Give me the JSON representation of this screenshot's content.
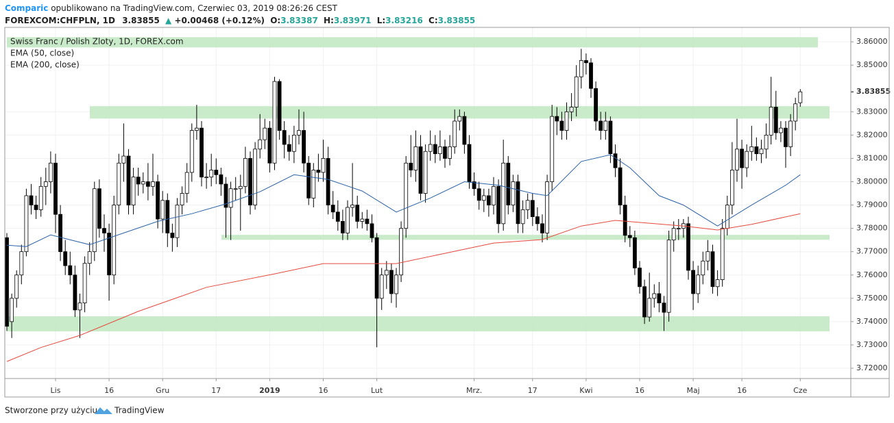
{
  "header": {
    "author": "Comparic",
    "published": "opublikowano na TradingView.com, Czerwiec 03, 2019 08:26:26 CEST",
    "symbol": "FOREXCOM:CHFPLN, 1D",
    "last": "3.83855",
    "arrow": "▲",
    "change": "+0.00468 (+0.12%)",
    "ohlc": [
      {
        "label": "O:",
        "value": "3.83387"
      },
      {
        "label": "H:",
        "value": "3.83971"
      },
      {
        "label": "L:",
        "value": "3.83216"
      },
      {
        "label": "C:",
        "value": "3.83855"
      }
    ]
  },
  "footer": {
    "text": "Stworzone przy użyciu",
    "brand": "TradingView"
  },
  "chart_data": {
    "type": "candlestick",
    "title": "Swiss Franc / Polish Zloty, 1D, FOREX.com",
    "up_color": "#ffffff",
    "down_color": "#000000",
    "zone_color": "#bfe8bf",
    "grid": true,
    "xlim": [
      0,
      164
    ],
    "ylim": [
      3.7156,
      3.8662
    ],
    "xticks": [
      {
        "value": 10,
        "label": "Lis"
      },
      {
        "value": 21,
        "label": "16"
      },
      {
        "value": 32,
        "label": "Gru"
      },
      {
        "value": 43,
        "label": "17"
      },
      {
        "value": 54,
        "label": "2019"
      },
      {
        "value": 65,
        "label": "16"
      },
      {
        "value": 76,
        "label": "Lut"
      },
      {
        "value": 96,
        "label": "Mrz."
      },
      {
        "value": 108,
        "label": "17"
      },
      {
        "value": 119,
        "label": "Kwi"
      },
      {
        "value": 130,
        "label": "16"
      },
      {
        "value": 141,
        "label": "Maj"
      },
      {
        "value": 151,
        "label": "16"
      },
      {
        "value": 163,
        "label": "Cze"
      }
    ],
    "yticks": [
      {
        "value": 3.72,
        "label": "3.72000"
      },
      {
        "value": 3.73,
        "label": "3.73000"
      },
      {
        "value": 3.74,
        "label": "3.74000"
      },
      {
        "value": 3.75,
        "label": "3.75000"
      },
      {
        "value": 3.76,
        "label": "3.76000"
      },
      {
        "value": 3.77,
        "label": "3.77000"
      },
      {
        "value": 3.78,
        "label": "3.78000"
      },
      {
        "value": 3.79,
        "label": "3.79000"
      },
      {
        "value": 3.8,
        "label": "3.80000"
      },
      {
        "value": 3.81,
        "label": "3.81000"
      },
      {
        "value": 3.82,
        "label": "3.82000"
      },
      {
        "value": 3.83,
        "label": "3.83000"
      },
      {
        "value": 3.85,
        "label": "3.85000"
      },
      {
        "value": 3.86,
        "label": "3.86000"
      }
    ],
    "last_price": {
      "value": 3.83855,
      "label": "3.83855"
    },
    "zones": [
      [
        3.8576,
        3.862
      ],
      [
        3.8271,
        3.8324
      ],
      [
        3.7751,
        3.7772
      ],
      [
        3.7358,
        3.7423
      ]
    ],
    "candles": [
      [
        3.776,
        3.778,
        3.736,
        3.738
      ],
      [
        3.74,
        3.752,
        3.733,
        3.75
      ],
      [
        3.75,
        3.762,
        3.746,
        3.76
      ],
      [
        3.76,
        3.773,
        3.756,
        3.77
      ],
      [
        3.77,
        3.797,
        3.768,
        3.794
      ],
      [
        3.794,
        3.799,
        3.786,
        3.79
      ],
      [
        3.79,
        3.794,
        3.784,
        3.788
      ],
      [
        3.788,
        3.802,
        3.785,
        3.798
      ],
      [
        3.798,
        3.806,
        3.79,
        3.8
      ],
      [
        3.8,
        3.813,
        3.795,
        3.808
      ],
      [
        3.808,
        3.812,
        3.778,
        3.786
      ],
      [
        3.786,
        3.79,
        3.766,
        3.77
      ],
      [
        3.77,
        3.775,
        3.76,
        3.764
      ],
      [
        3.764,
        3.77,
        3.756,
        3.76
      ],
      [
        3.76,
        3.764,
        3.742,
        3.745
      ],
      [
        3.745,
        3.752,
        3.733,
        3.748
      ],
      [
        3.748,
        3.768,
        3.744,
        3.765
      ],
      [
        3.765,
        3.774,
        3.76,
        3.77
      ],
      [
        3.77,
        3.8,
        3.766,
        3.797
      ],
      [
        3.797,
        3.801,
        3.776,
        3.78
      ],
      [
        3.78,
        3.786,
        3.77,
        3.778
      ],
      [
        3.778,
        3.782,
        3.749,
        3.76
      ],
      [
        3.76,
        3.794,
        3.756,
        3.79
      ],
      [
        3.79,
        3.812,
        3.786,
        3.808
      ],
      [
        3.808,
        3.825,
        3.8,
        3.811
      ],
      [
        3.811,
        3.814,
        3.786,
        3.79
      ],
      [
        3.79,
        3.806,
        3.786,
        3.802
      ],
      [
        3.802,
        3.806,
        3.794,
        3.799
      ],
      [
        3.799,
        3.804,
        3.795,
        3.8
      ],
      [
        3.8,
        3.808,
        3.792,
        3.798
      ],
      [
        3.798,
        3.812,
        3.794,
        3.8
      ],
      [
        3.8,
        3.803,
        3.78,
        3.784
      ],
      [
        3.784,
        3.796,
        3.778,
        3.792
      ],
      [
        3.792,
        3.795,
        3.772,
        3.778
      ],
      [
        3.778,
        3.782,
        3.77,
        3.776
      ],
      [
        3.776,
        3.793,
        3.772,
        3.79
      ],
      [
        3.79,
        3.798,
        3.786,
        3.795
      ],
      [
        3.795,
        3.808,
        3.791,
        3.804
      ],
      [
        3.804,
        3.825,
        3.8,
        3.822
      ],
      [
        3.822,
        3.833,
        3.818,
        3.823
      ],
      [
        3.823,
        3.826,
        3.798,
        3.802
      ],
      [
        3.802,
        3.808,
        3.797,
        3.802
      ],
      [
        3.802,
        3.812,
        3.798,
        3.805
      ],
      [
        3.805,
        3.81,
        3.799,
        3.803
      ],
      [
        3.803,
        3.806,
        3.794,
        3.799
      ],
      [
        3.799,
        3.802,
        3.776,
        3.789
      ],
      [
        3.789,
        3.8,
        3.775,
        3.797
      ],
      [
        3.797,
        3.802,
        3.792,
        3.797
      ],
      [
        3.797,
        3.803,
        3.779,
        3.798
      ],
      [
        3.798,
        3.815,
        3.795,
        3.81
      ],
      [
        3.81,
        3.813,
        3.786,
        3.79
      ],
      [
        3.79,
        3.817,
        3.788,
        3.814
      ],
      [
        3.814,
        3.829,
        3.81,
        3.818
      ],
      [
        3.818,
        3.827,
        3.814,
        3.823
      ],
      [
        3.823,
        3.826,
        3.804,
        3.808
      ],
      [
        3.808,
        3.845,
        3.805,
        3.843
      ],
      [
        3.843,
        3.844,
        3.818,
        3.822
      ],
      [
        3.822,
        3.826,
        3.81,
        3.816
      ],
      [
        3.816,
        3.82,
        3.809,
        3.813
      ],
      [
        3.813,
        3.824,
        3.808,
        3.82
      ],
      [
        3.82,
        3.831,
        3.816,
        3.822
      ],
      [
        3.822,
        3.83,
        3.804,
        3.808
      ],
      [
        3.808,
        3.811,
        3.79,
        3.793
      ],
      [
        3.793,
        3.808,
        3.789,
        3.805
      ],
      [
        3.805,
        3.812,
        3.8,
        3.804
      ],
      [
        3.804,
        3.818,
        3.8,
        3.81
      ],
      [
        3.81,
        3.815,
        3.786,
        3.79
      ],
      [
        3.79,
        3.796,
        3.784,
        3.787
      ],
      [
        3.787,
        3.792,
        3.779,
        3.783
      ],
      [
        3.783,
        3.788,
        3.775,
        3.778
      ],
      [
        3.778,
        3.792,
        3.775,
        3.789
      ],
      [
        3.789,
        3.808,
        3.785,
        3.79
      ],
      [
        3.79,
        3.794,
        3.78,
        3.783
      ],
      [
        3.783,
        3.787,
        3.78,
        3.784
      ],
      [
        3.784,
        3.788,
        3.779,
        3.782
      ],
      [
        3.782,
        3.786,
        3.774,
        3.776
      ],
      [
        3.776,
        3.778,
        3.729,
        3.75
      ],
      [
        3.75,
        3.763,
        3.745,
        3.76
      ],
      [
        3.76,
        3.766,
        3.754,
        3.762
      ],
      [
        3.762,
        3.765,
        3.748,
        3.752
      ],
      [
        3.752,
        3.763,
        3.746,
        3.76
      ],
      [
        3.76,
        3.783,
        3.757,
        3.78
      ],
      [
        3.78,
        3.811,
        3.776,
        3.808
      ],
      [
        3.808,
        3.82,
        3.802,
        3.805
      ],
      [
        3.805,
        3.822,
        3.8,
        3.815
      ],
      [
        3.815,
        3.82,
        3.792,
        3.795
      ],
      [
        3.795,
        3.816,
        3.791,
        3.813
      ],
      [
        3.813,
        3.822,
        3.809,
        3.816
      ],
      [
        3.816,
        3.82,
        3.808,
        3.812
      ],
      [
        3.812,
        3.822,
        3.809,
        3.815
      ],
      [
        3.815,
        3.818,
        3.806,
        3.81
      ],
      [
        3.81,
        3.82,
        3.807,
        3.815
      ],
      [
        3.815,
        3.831,
        3.812,
        3.826
      ],
      [
        3.826,
        3.831,
        3.822,
        3.828
      ],
      [
        3.828,
        3.83,
        3.812,
        3.816
      ],
      [
        3.816,
        3.82,
        3.797,
        3.8
      ],
      [
        3.8,
        3.804,
        3.794,
        3.797
      ],
      [
        3.797,
        3.8,
        3.788,
        3.792
      ],
      [
        3.792,
        3.797,
        3.787,
        3.794
      ],
      [
        3.794,
        3.797,
        3.785,
        3.79
      ],
      [
        3.79,
        3.802,
        3.786,
        3.798
      ],
      [
        3.798,
        3.801,
        3.778,
        3.782
      ],
      [
        3.782,
        3.818,
        3.779,
        3.808
      ],
      [
        3.808,
        3.811,
        3.786,
        3.79
      ],
      [
        3.79,
        3.803,
        3.787,
        3.8
      ],
      [
        3.8,
        3.803,
        3.778,
        3.782
      ],
      [
        3.782,
        3.792,
        3.778,
        3.788
      ],
      [
        3.788,
        3.795,
        3.784,
        3.792
      ],
      [
        3.792,
        3.795,
        3.781,
        3.785
      ],
      [
        3.785,
        3.789,
        3.779,
        3.782
      ],
      [
        3.782,
        3.786,
        3.774,
        3.778
      ],
      [
        3.778,
        3.803,
        3.775,
        3.8
      ],
      [
        3.8,
        3.833,
        3.796,
        3.828
      ],
      [
        3.828,
        3.832,
        3.82,
        3.826
      ],
      [
        3.826,
        3.83,
        3.818,
        3.822
      ],
      [
        3.822,
        3.834,
        3.818,
        3.83
      ],
      [
        3.83,
        3.838,
        3.826,
        3.832
      ],
      [
        3.832,
        3.85,
        3.828,
        3.845
      ],
      [
        3.845,
        3.857,
        3.84,
        3.852
      ],
      [
        3.852,
        3.855,
        3.846,
        3.851
      ],
      [
        3.851,
        3.853,
        3.836,
        3.84
      ],
      [
        3.84,
        3.843,
        3.822,
        3.826
      ],
      [
        3.826,
        3.83,
        3.818,
        3.822
      ],
      [
        3.822,
        3.83,
        3.818,
        3.826
      ],
      [
        3.826,
        3.828,
        3.808,
        3.812
      ],
      [
        3.812,
        3.816,
        3.802,
        3.806
      ],
      [
        3.806,
        3.81,
        3.786,
        3.79
      ],
      [
        3.79,
        3.794,
        3.774,
        3.777
      ],
      [
        3.777,
        3.781,
        3.772,
        3.776
      ],
      [
        3.776,
        3.779,
        3.76,
        3.763
      ],
      [
        3.763,
        3.766,
        3.752,
        3.755
      ],
      [
        3.755,
        3.758,
        3.739,
        3.742
      ],
      [
        3.742,
        3.761,
        3.74,
        3.75
      ],
      [
        3.75,
        3.756,
        3.746,
        3.752
      ],
      [
        3.752,
        3.757,
        3.744,
        3.748
      ],
      [
        3.748,
        3.751,
        3.736,
        3.744
      ],
      [
        3.744,
        3.779,
        3.74,
        3.775
      ],
      [
        3.775,
        3.783,
        3.77,
        3.78
      ],
      [
        3.78,
        3.784,
        3.775,
        3.78
      ],
      [
        3.78,
        3.784,
        3.776,
        3.782
      ],
      [
        3.782,
        3.785,
        3.758,
        3.762
      ],
      [
        3.762,
        3.766,
        3.745,
        3.752
      ],
      [
        3.752,
        3.764,
        3.748,
        3.76
      ],
      [
        3.76,
        3.77,
        3.756,
        3.766
      ],
      [
        3.766,
        3.775,
        3.762,
        3.77
      ],
      [
        3.77,
        3.773,
        3.752,
        3.755
      ],
      [
        3.755,
        3.762,
        3.751,
        3.758
      ],
      [
        3.758,
        3.784,
        3.755,
        3.78
      ],
      [
        3.78,
        3.794,
        3.777,
        3.79
      ],
      [
        3.79,
        3.817,
        3.786,
        3.805
      ],
      [
        3.805,
        3.827,
        3.8,
        3.814
      ],
      [
        3.814,
        3.818,
        3.797,
        3.806
      ],
      [
        3.806,
        3.816,
        3.802,
        3.813
      ],
      [
        3.813,
        3.824,
        3.809,
        3.815
      ],
      [
        3.815,
        3.819,
        3.809,
        3.812
      ],
      [
        3.812,
        3.818,
        3.808,
        3.814
      ],
      [
        3.814,
        3.825,
        3.81,
        3.82
      ],
      [
        3.82,
        3.845,
        3.816,
        3.832
      ],
      [
        3.832,
        3.839,
        3.818,
        3.821
      ],
      [
        3.821,
        3.826,
        3.817,
        3.823
      ],
      [
        3.823,
        3.826,
        3.806,
        3.815
      ],
      [
        3.815,
        3.829,
        3.811,
        3.826
      ],
      [
        3.826,
        3.836,
        3.822,
        3.8334
      ],
      [
        3.83387,
        3.83971,
        3.83216,
        3.83855
      ]
    ],
    "series": [
      {
        "name": "EMA (50, close)",
        "color": "#2962a8",
        "x": [
          0,
          4,
          9,
          17,
          24,
          31,
          38,
          45,
          52,
          59,
          66,
          73,
          80,
          87,
          94,
          101,
          108,
          111,
          118,
          124,
          128,
          134,
          139,
          146,
          153,
          160,
          163
        ],
        "values": [
          3.7728,
          3.7722,
          3.7772,
          3.773,
          3.778,
          3.783,
          3.7863,
          3.7905,
          3.7957,
          3.803,
          3.801,
          3.796,
          3.787,
          3.793,
          3.8,
          3.7985,
          3.795,
          3.794,
          3.8087,
          3.8116,
          3.806,
          3.794,
          3.79,
          3.781,
          3.79,
          3.7985,
          3.803
        ]
      },
      {
        "name": "EMA (200, close)",
        "color": "#e5483c",
        "x": [
          0,
          7,
          15,
          27,
          41,
          55,
          65,
          73,
          80,
          90,
          100,
          110,
          118,
          125,
          132,
          139,
          146,
          153,
          163
        ],
        "values": [
          3.7229,
          3.7289,
          3.7341,
          3.7444,
          3.7547,
          3.7605,
          3.7649,
          3.7649,
          3.7649,
          3.7693,
          3.7737,
          3.7752,
          3.781,
          3.7834,
          3.7822,
          3.781,
          3.7793,
          3.7817,
          3.7863
        ]
      }
    ]
  }
}
